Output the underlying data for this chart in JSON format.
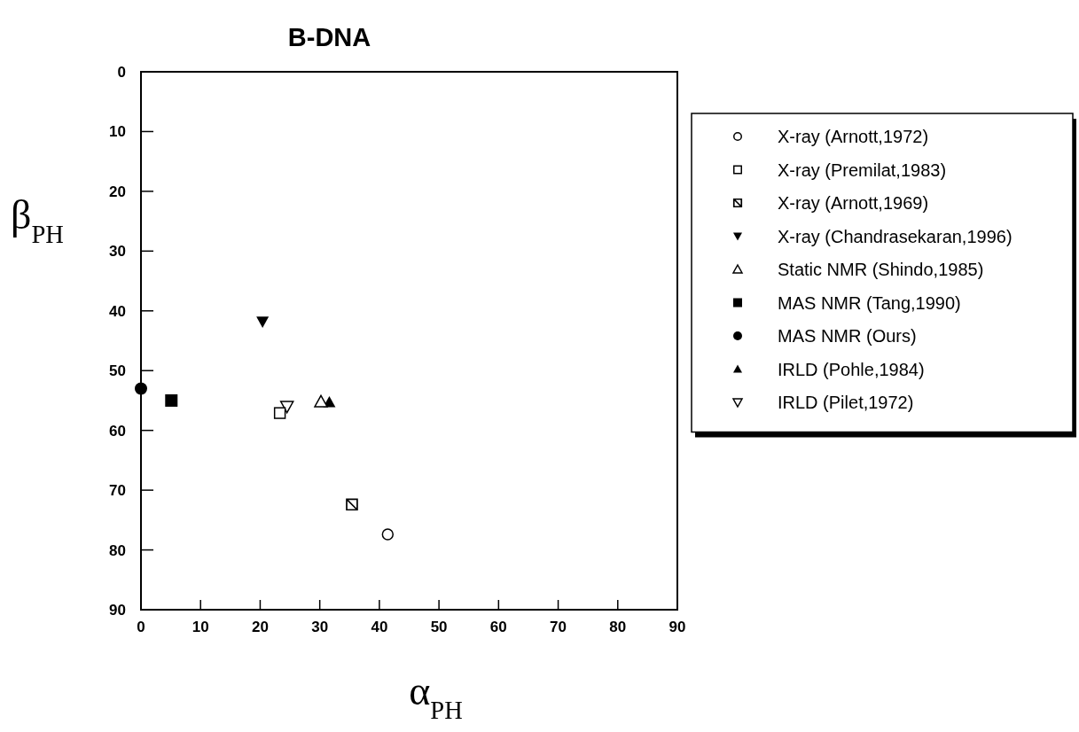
{
  "chart_data": {
    "type": "scatter",
    "title": "B-DNA",
    "xlabel": "α$_{PH}$",
    "ylabel": "β$_{PH}$",
    "xlim": [
      0,
      90
    ],
    "xticks": [
      0,
      10,
      20,
      30,
      40,
      50,
      60,
      70,
      80,
      90
    ],
    "ylim": [
      90,
      0
    ],
    "yticks": [
      0,
      10,
      20,
      30,
      40,
      50,
      60,
      70,
      80,
      90
    ],
    "grid": false,
    "legend": "right",
    "series": [
      {
        "name": "X-ray (Arnott,1972)",
        "color": "#ffffff",
        "marker": "circle",
        "x": [
          41.4
        ],
        "values": [
          77.4
        ]
      },
      {
        "name": "X-ray (Premilat,1983)",
        "color": "#ffffff",
        "marker": "square",
        "x": [
          23.3
        ],
        "values": [
          57.1
        ]
      },
      {
        "name": "X-ray (Arnott,1969)",
        "color": "#000000",
        "marker": "cross",
        "x": [
          35.4
        ],
        "values": [
          72.4
        ]
      },
      {
        "name": "X-ray (Chandrasekaran,1996)",
        "color": "#000000",
        "marker": "triangle-down",
        "x": [
          20.4
        ],
        "values": [
          41.8
        ]
      },
      {
        "name": "Static NMR (Shindo,1985)",
        "color": "#ffffff",
        "marker": "triangle",
        "x": [
          30.2
        ],
        "values": [
          55.2
        ]
      },
      {
        "name": "MAS NMR (Tang,1990)",
        "color": "#000000",
        "marker": "square",
        "x": [
          5.1
        ],
        "values": [
          55.0
        ]
      },
      {
        "name": "MAS NMR (Ours)",
        "color": "#000000",
        "marker": "circle",
        "x": [
          0
        ],
        "values": [
          53.0
        ]
      },
      {
        "name": "IRLD (Pohle,1984)",
        "color": "#000000",
        "marker": "triangle",
        "x": [
          31.6
        ],
        "values": [
          55.3
        ]
      },
      {
        "name": "IRLD (Pilet,1972)",
        "color": "#ffffff",
        "marker": "triangle-down",
        "x": [
          24.5
        ],
        "values": [
          56.0
        ]
      }
    ]
  }
}
